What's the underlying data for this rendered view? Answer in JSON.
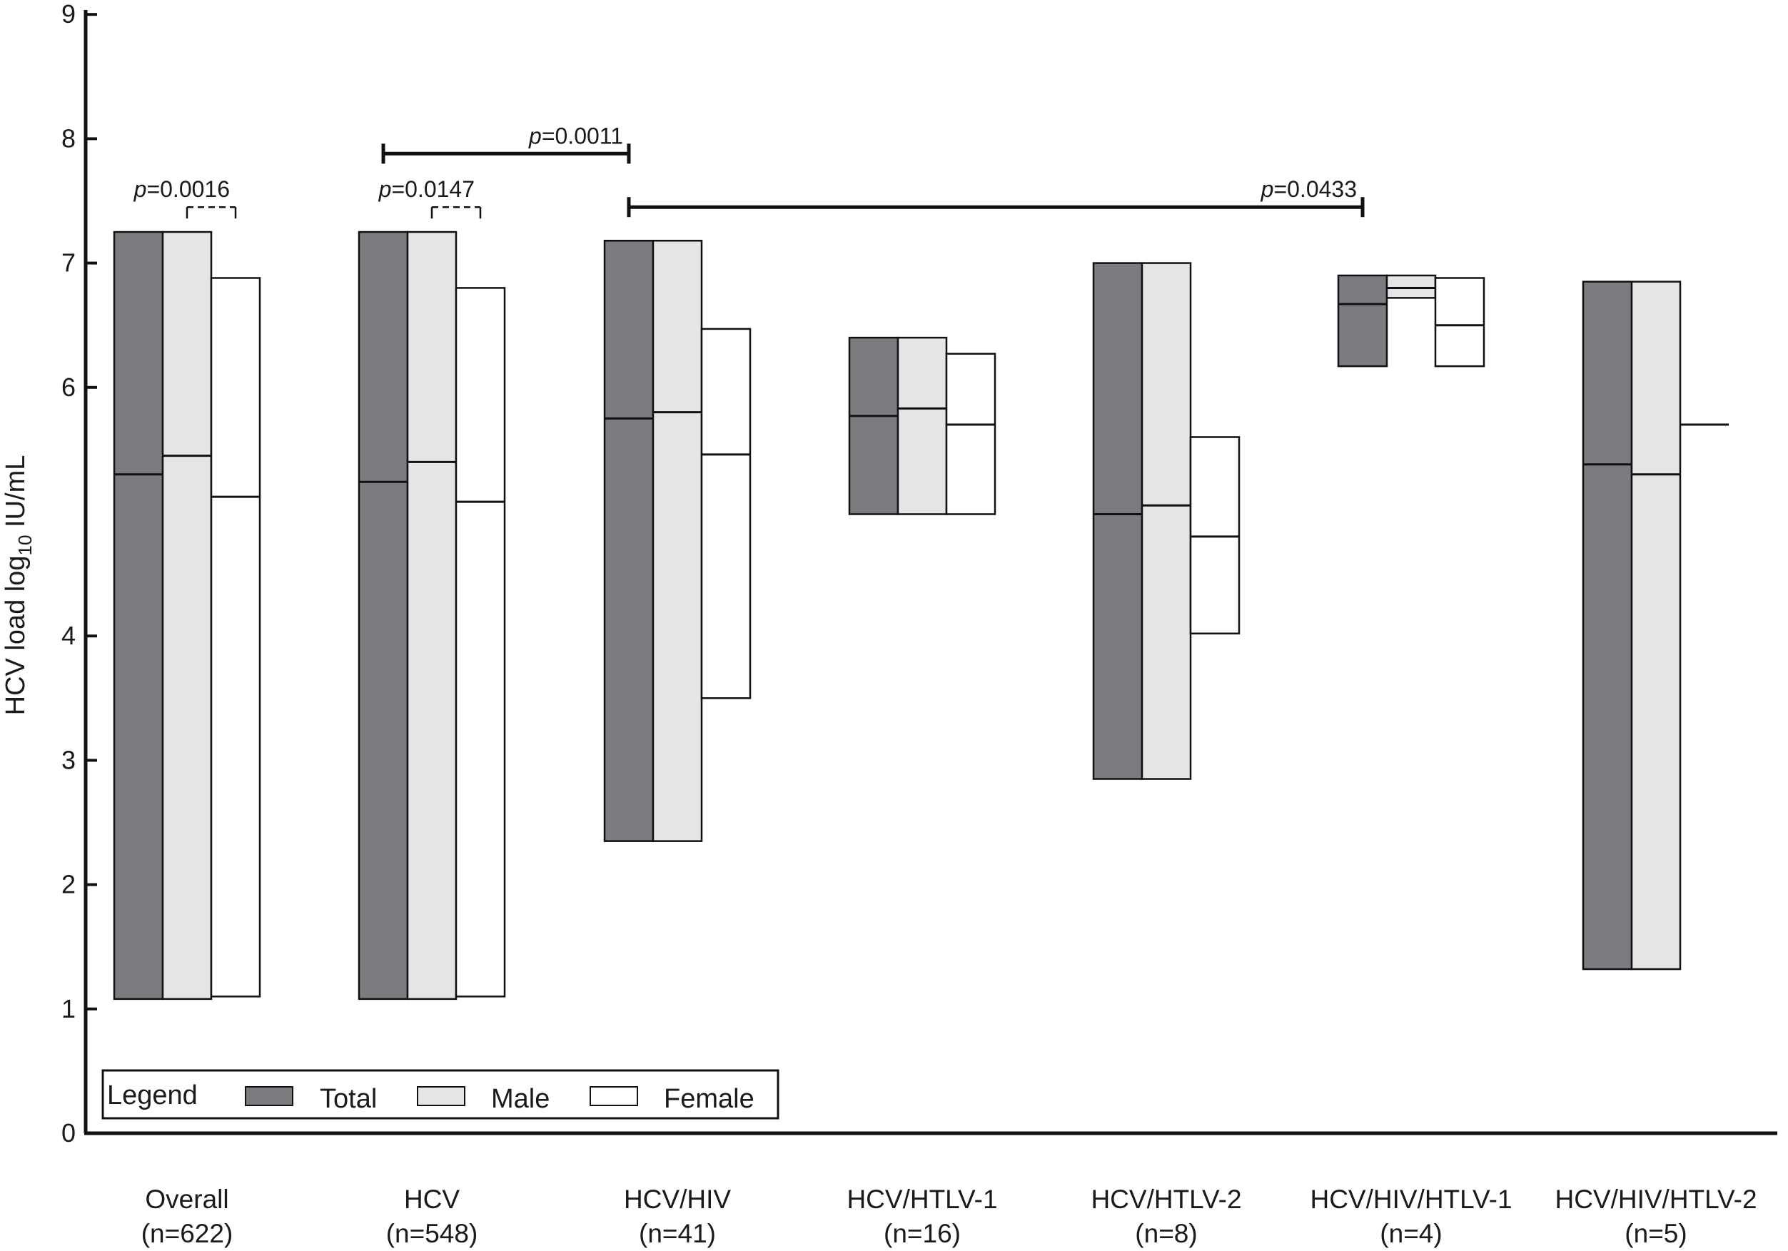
{
  "chart_data": {
    "type": "bar",
    "ylabel": "HCV load log",
    "ylabel_sub": "10",
    "ylabel_unit": " IU/mL",
    "y_ticks": [
      0,
      1,
      2,
      3,
      4,
      6,
      7,
      8,
      9
    ],
    "ylim": [
      0,
      9
    ],
    "grid": false,
    "legend": {
      "position": "bottom-left",
      "title": "Legend",
      "entries": [
        "Total",
        "Male",
        "Female"
      ]
    },
    "series_colors": {
      "Total": "#7b7c80",
      "Male": "#e4e5e7",
      "Female": "#ffffff"
    },
    "groups": [
      {
        "label": "Overall",
        "n": "(n=622)",
        "bars": [
          {
            "series": "Total",
            "min": 1.08,
            "median": 5.3,
            "max": 7.25
          },
          {
            "series": "Male",
            "min": 1.08,
            "median": 5.45,
            "max": 7.25
          },
          {
            "series": "Female",
            "min": 1.1,
            "median": 5.12,
            "max": 6.88
          }
        ]
      },
      {
        "label": "HCV",
        "n": "(n=548)",
        "bars": [
          {
            "series": "Total",
            "min": 1.08,
            "median": 5.24,
            "max": 7.25
          },
          {
            "series": "Male",
            "min": 1.08,
            "median": 5.4,
            "max": 7.25
          },
          {
            "series": "Female",
            "min": 1.1,
            "median": 5.08,
            "max": 6.8
          }
        ]
      },
      {
        "label": "HCV/HIV",
        "n": "(n=41)",
        "bars": [
          {
            "series": "Total",
            "min": 2.35,
            "median": 5.75,
            "max": 7.18
          },
          {
            "series": "Male",
            "min": 2.35,
            "median": 5.8,
            "max": 7.18
          },
          {
            "series": "Female",
            "min": 3.5,
            "median": 5.46,
            "max": 6.47
          }
        ]
      },
      {
        "label": "HCV/HTLV-1",
        "n": "(n=16)",
        "bars": [
          {
            "series": "Total",
            "min": 4.98,
            "median": 5.77,
            "max": 6.4
          },
          {
            "series": "Male",
            "min": 4.98,
            "median": 5.83,
            "max": 6.4
          },
          {
            "series": "Female",
            "min": 4.98,
            "median": 5.7,
            "max": 6.27
          }
        ]
      },
      {
        "label": "HCV/HTLV-2",
        "n": "(n=8)",
        "bars": [
          {
            "series": "Total",
            "min": 2.85,
            "median": 4.98,
            "max": 7.0
          },
          {
            "series": "Male",
            "min": 2.85,
            "median": 5.05,
            "max": 7.0
          },
          {
            "series": "Female",
            "min": 4.02,
            "median": 4.8,
            "max": 5.6
          }
        ]
      },
      {
        "label": "HCV/HIV/HTLV-1",
        "n": "(n=4)",
        "bars": [
          {
            "series": "Total",
            "min": 6.17,
            "median": 6.67,
            "max": 6.9
          },
          {
            "series": "Male",
            "min": 6.72,
            "median": 6.8,
            "max": 6.9
          },
          {
            "series": "Female",
            "min": 6.17,
            "median": 6.5,
            "max": 6.88
          }
        ]
      },
      {
        "label": "HCV/HIV/HTLV-2",
        "n": "(n=5)",
        "bars": [
          {
            "series": "Total",
            "min": 1.32,
            "median": 5.38,
            "max": 6.85
          },
          {
            "series": "Male",
            "min": 1.32,
            "median": 5.3,
            "max": 6.85
          },
          {
            "series": "Female",
            "min": null,
            "median": 5.7,
            "max": null
          }
        ]
      }
    ],
    "comparisons": [
      {
        "label_italic": "p",
        "label": "=0.0016",
        "style": "dashed",
        "y": 7.45,
        "from": [
          0,
          1
        ],
        "to": [
          0,
          2
        ]
      },
      {
        "label_italic": "p",
        "label": "=0.0147",
        "style": "dashed",
        "y": 7.45,
        "from": [
          1,
          1
        ],
        "to": [
          1,
          2
        ]
      },
      {
        "label_italic": "p",
        "label": "=0.0011",
        "style": "solid",
        "y": 7.88,
        "from": [
          1,
          0
        ],
        "to": [
          2,
          0
        ]
      },
      {
        "label_italic": "p",
        "label": "=0.0433",
        "style": "solid",
        "y": 7.45,
        "from": [
          2,
          0
        ],
        "to": [
          5,
          0
        ]
      }
    ]
  }
}
